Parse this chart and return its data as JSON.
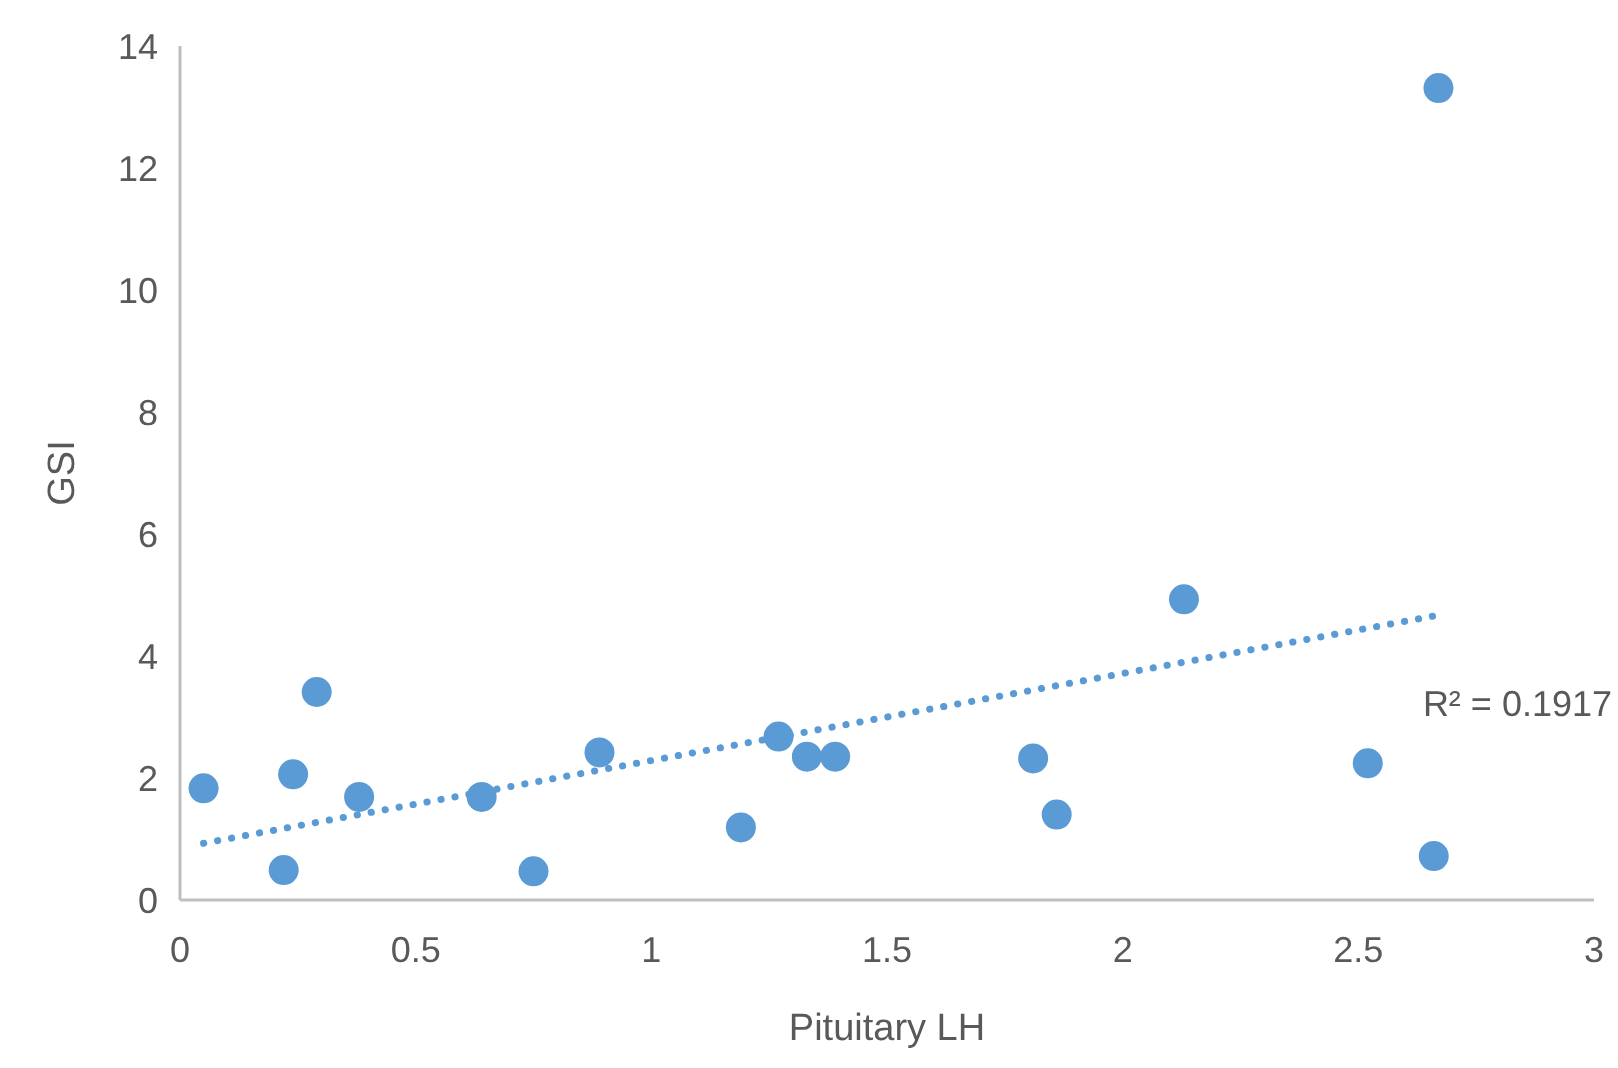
{
  "chart_data": {
    "type": "scatter",
    "xlabel": "Pituitary LH",
    "ylabel": "GSI",
    "xlim": [
      0,
      3
    ],
    "ylim": [
      0,
      14
    ],
    "xticks": [
      0,
      0.5,
      1,
      1.5,
      2,
      2.5,
      3
    ],
    "yticks": [
      0,
      2,
      4,
      6,
      8,
      10,
      12,
      14
    ],
    "grid": false,
    "marker": "circle",
    "series": [
      {
        "color": "#5b9bd5",
        "x": [
          0.05,
          0.22,
          0.29,
          0.24,
          0.38,
          0.64,
          0.75,
          0.89,
          1.19,
          1.27,
          1.33,
          1.39,
          2.67,
          2.13,
          1.81,
          1.86,
          2.52,
          2.66
        ],
        "values": [
          1.83,
          0.49,
          3.41,
          2.06,
          1.69,
          1.69,
          0.47,
          2.42,
          1.19,
          2.68,
          2.35,
          2.35,
          13.31,
          4.93,
          2.32,
          1.4,
          2.24,
          0.72
        ]
      },
      {
        "type": "line",
        "color": "#5b9bd5",
        "line_style": "dotted",
        "marker": "none",
        "x": [
          0.05,
          2.67
        ],
        "values": [
          0.93,
          4.67
        ]
      }
    ],
    "annotations": [
      "R² = 0.1917"
    ]
  }
}
